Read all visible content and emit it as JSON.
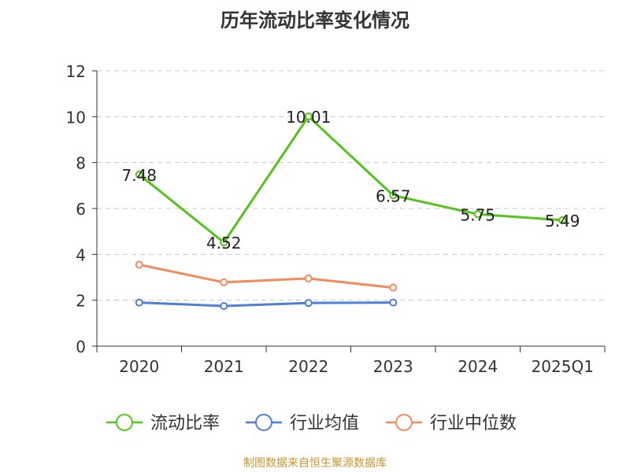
{
  "chart_data": {
    "type": "line",
    "title": "历年流动比率变化情况",
    "categories": [
      "2020",
      "2021",
      "2022",
      "2023",
      "2024",
      "2025Q1"
    ],
    "ylim": [
      0,
      12
    ],
    "yticks": [
      0,
      2,
      4,
      6,
      8,
      10,
      12
    ],
    "grid": true,
    "legend_position": "bottom",
    "series": [
      {
        "name": "流动比率",
        "color": "#52c41a",
        "values": [
          7.48,
          4.52,
          10.01,
          6.57,
          5.75,
          5.49
        ],
        "labels": [
          "7.48",
          "4.52",
          "10.01",
          "6.57",
          "5.75",
          "5.49"
        ]
      },
      {
        "name": "行业均值",
        "color": "#4e7fdc",
        "values": [
          1.9,
          1.75,
          1.88,
          1.9,
          null,
          null
        ]
      },
      {
        "name": "行业中位数",
        "color": "#f38a5a",
        "values": [
          3.55,
          2.78,
          2.95,
          2.55,
          null,
          null
        ]
      }
    ]
  },
  "footer": {
    "source": "制图数据来自恒生聚源数据库"
  }
}
